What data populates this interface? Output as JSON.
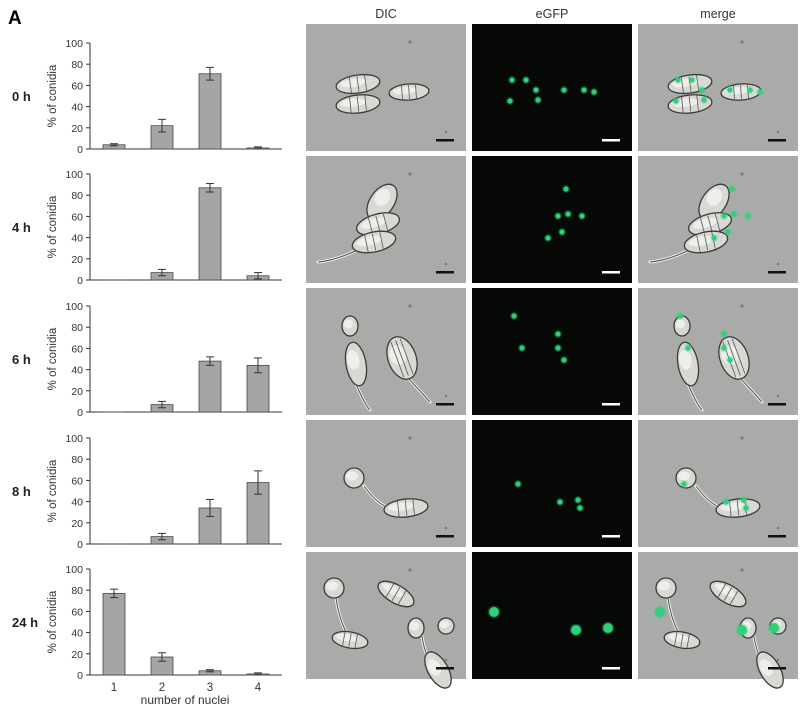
{
  "figure": {
    "panel_letter": "A",
    "column_headers": [
      "DIC",
      "eGFP",
      "merge"
    ],
    "colors": {
      "bar_fill": "#a5a5a5",
      "bar_stroke": "#4a4a4a",
      "dic_background": "#a8aba8",
      "egfp_background": "#050805",
      "nucleus_green": "#2fd07a"
    }
  },
  "chart_data": {
    "type": "bar",
    "xlabel": "number of nuclei",
    "ylabel": "% of conidia",
    "categories": [
      "1",
      "2",
      "3",
      "4"
    ],
    "ylim": [
      0,
      100
    ],
    "yticks": [
      0,
      20,
      40,
      60,
      80,
      100
    ],
    "grid": false,
    "error_bars": true,
    "series": [
      {
        "name": "0 h",
        "values": [
          4,
          22,
          71,
          1
        ],
        "errors": [
          1,
          6,
          6,
          1
        ]
      },
      {
        "name": "4 h",
        "values": [
          0,
          7,
          87,
          4
        ],
        "errors": [
          0,
          3,
          4,
          3
        ]
      },
      {
        "name": "6 h",
        "values": [
          0,
          7,
          48,
          44
        ],
        "errors": [
          0,
          3,
          4,
          7
        ]
      },
      {
        "name": "8 h",
        "values": [
          0,
          7,
          34,
          58
        ],
        "errors": [
          0,
          3,
          8,
          11
        ]
      },
      {
        "name": "24 h",
        "values": [
          77,
          17,
          4,
          1
        ],
        "errors": [
          4,
          4,
          1,
          1
        ]
      }
    ]
  }
}
